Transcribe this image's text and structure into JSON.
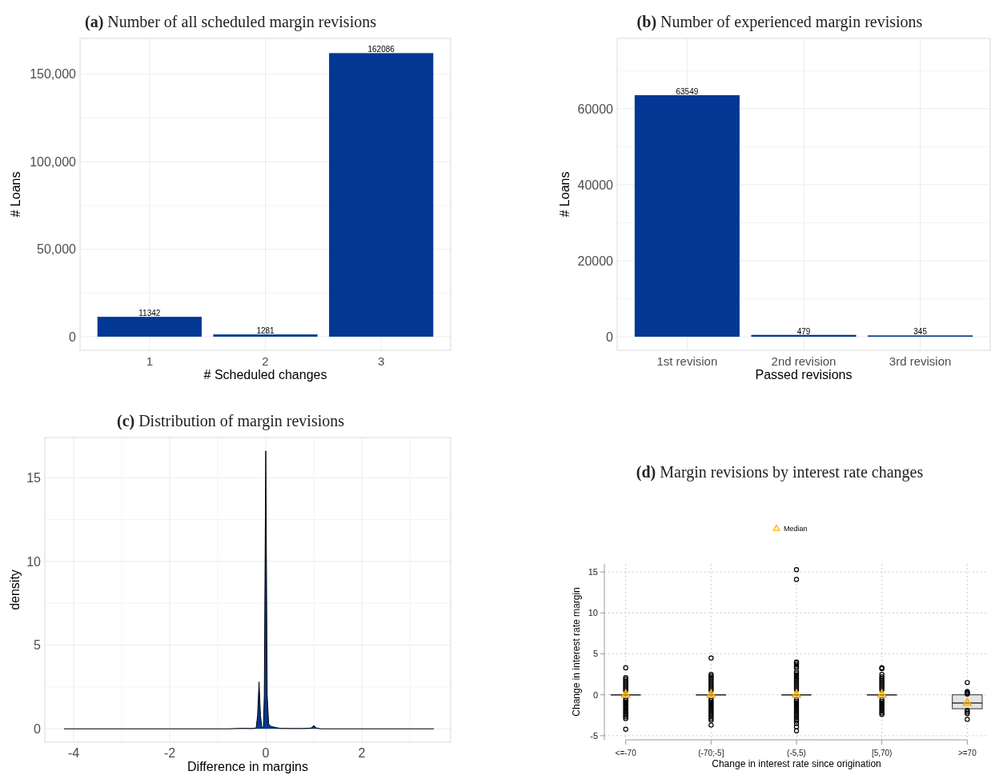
{
  "chart_data": [
    {
      "type": "bar",
      "title": "(a) Number of all scheduled margin revisions",
      "xlabel": "# Scheduled changes",
      "ylabel": "# Loans",
      "categories": [
        "1",
        "2",
        "3"
      ],
      "values": [
        11342,
        1281,
        162086
      ],
      "color": "#023893",
      "data_labels": true,
      "ylim": [
        -7800,
        170500
      ],
      "yticks": [
        0,
        {
          "value": 25000,
          "label": null
        },
        {
          "value": 50000,
          "label": "50,000"
        },
        {
          "value": 75000,
          "label": null
        },
        {
          "value": 100000,
          "label": "100,000"
        },
        {
          "value": 125000,
          "label": null
        },
        {
          "value": 150000,
          "label": "150,000"
        }
      ],
      "grid": true
    },
    {
      "type": "bar",
      "title": "(b) Number of experienced margin revisions",
      "xlabel": "Passed revisions",
      "ylabel": "# Loans",
      "categories": [
        "1st revision",
        "2nd revision",
        "3rd revision"
      ],
      "values": [
        63549,
        479,
        345
      ],
      "color": "#023893",
      "data_labels": true,
      "ylim": [
        -3580,
        78500
      ],
      "yticks": [
        0,
        {
          "value": 10000,
          "label": null
        },
        20000,
        {
          "value": 30000,
          "label": null
        },
        40000,
        {
          "value": 50000,
          "label": null
        },
        60000,
        {
          "value": 70000,
          "label": null
        }
      ],
      "grid": true
    },
    {
      "type": "area",
      "title": "(c) Distribution of margin revisions",
      "xlabel": "Difference in margins",
      "ylabel": "density",
      "color": "#023893",
      "x": [
        -4.2,
        -0.8,
        -0.5,
        -0.3,
        -0.2,
        -0.17,
        -0.14,
        -0.11,
        -0.08,
        -0.05,
        -0.03,
        -0.01,
        0,
        0.01,
        0.03,
        0.06,
        0.1,
        0.2,
        0.3,
        0.5,
        0.8,
        0.95,
        1.0,
        1.05,
        1.15,
        3.5
      ],
      "values": [
        0,
        0,
        0.03,
        0.02,
        0.05,
        0.8,
        2.8,
        0.8,
        0.05,
        0.1,
        2,
        12,
        16.6,
        12,
        2,
        0.3,
        0.15,
        0.08,
        0.03,
        0.02,
        0.02,
        0.05,
        0.2,
        0.05,
        0,
        0
      ],
      "xlim": [
        -4.6,
        3.85
      ],
      "xticks": [
        -4,
        {
          "value": -3,
          "label": null
        },
        -2,
        {
          "value": -1,
          "label": null
        },
        0,
        {
          "value": 1,
          "label": null
        },
        2,
        {
          "value": 3,
          "label": null
        }
      ],
      "ylim": [
        -0.8,
        17.4
      ],
      "yticks": [
        0,
        {
          "value": 2.5,
          "label": null
        },
        5,
        {
          "value": 7.5,
          "label": null
        },
        10,
        {
          "value": 12.5,
          "label": null
        },
        15
      ],
      "grid": true
    },
    {
      "type": "box",
      "title": "(d) Margin revisions by interest rate changes",
      "xlabel": "Change in interest rate since origination",
      "ylabel": "Change in interest rate margin",
      "categories": [
        "<=-70",
        "(-70;-5]",
        "(-5,5)",
        "[5,70)",
        ">=70"
      ],
      "ylim": [
        -5.5,
        16
      ],
      "yticks": [
        -5,
        0,
        5,
        10,
        15
      ],
      "grid": true,
      "legend": "top",
      "series": [
        {
          "type": "box",
          "boxes": [
            {
              "low": 0,
              "q1": 0,
              "median": 0,
              "q3": 0,
              "high": 0,
              "outliers": [
                -4.2,
                -2.9,
                -2.7,
                -2.5,
                -2.3,
                -2.1,
                -1.9,
                -1.7,
                -1.5,
                -1.3,
                -1.1,
                -0.9,
                -0.7,
                -0.5,
                0.5,
                0.7,
                0.9,
                1.1,
                1.3,
                1.5,
                1.7,
                1.9,
                2.1,
                3.3
              ]
            },
            {
              "low": 0,
              "q1": 0,
              "median": 0,
              "q3": 0,
              "high": 0,
              "outliers": [
                -3.7,
                -3.1,
                -2.9,
                -2.7,
                -2.5,
                -2.3,
                -2.1,
                -1.9,
                -1.7,
                -1.5,
                -1.3,
                -1.1,
                -0.9,
                -0.7,
                -0.5,
                0.5,
                0.7,
                0.9,
                1.1,
                1.3,
                1.5,
                1.7,
                1.9,
                2.1,
                2.3,
                2.5,
                4.5
              ]
            },
            {
              "low": 0,
              "q1": 0,
              "median": 0,
              "q3": 0,
              "high": 0,
              "outliers": [
                -4.4,
                -3.9,
                -3.5,
                -3.2,
                -3.0,
                -2.8,
                -2.6,
                -2.4,
                -2.2,
                -2.0,
                -1.8,
                -1.6,
                -1.4,
                -1.2,
                -1.0,
                -0.8,
                -0.6,
                0.6,
                0.8,
                1.0,
                1.2,
                1.4,
                1.6,
                1.8,
                2.0,
                2.2,
                2.4,
                2.6,
                2.8,
                3.3,
                3.5,
                3.7,
                3.9,
                4.0,
                14.1,
                15.3
              ]
            },
            {
              "low": 0,
              "q1": 0,
              "median": 0,
              "q3": 0,
              "high": 0,
              "outliers": [
                -2.4,
                -2.2,
                -2.0,
                -1.8,
                -1.6,
                -1.4,
                -1.2,
                -1.0,
                -0.8,
                -0.6,
                0.6,
                0.8,
                1.0,
                1.2,
                1.4,
                1.6,
                1.8,
                2.0,
                2.2,
                2.5,
                3.2,
                3.3
              ]
            },
            {
              "low": -1.7,
              "q1": -1.7,
              "median": -1.0,
              "q3": 0,
              "high": 0,
              "outliers": [
                -3.0,
                -2.3,
                -2.1,
                -1.9,
                0.1,
                0.2,
                0.3,
                0.4,
                1.5
              ]
            }
          ]
        },
        {
          "type": "scatter",
          "name": "Median",
          "color": "#ffb000",
          "marker": "triangle",
          "values": [
            0,
            0,
            0,
            0,
            -1.0
          ]
        }
      ]
    }
  ]
}
